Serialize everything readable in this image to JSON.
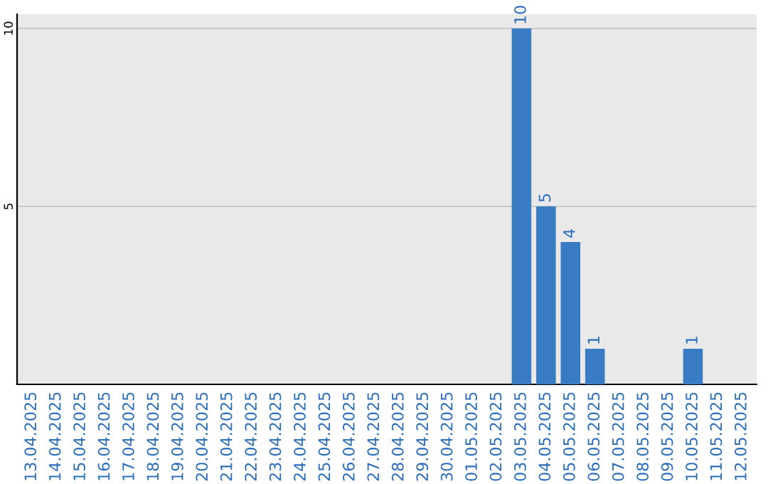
{
  "chart_data": {
    "type": "bar",
    "categories": [
      "13.04.2025",
      "14.04.2025",
      "15.04.2025",
      "16.04.2025",
      "17.04.2025",
      "18.04.2025",
      "19.04.2025",
      "20.04.2025",
      "21.04.2025",
      "22.04.2025",
      "23.04.2025",
      "24.04.2025",
      "25.04.2025",
      "26.04.2025",
      "27.04.2025",
      "28.04.2025",
      "29.04.2025",
      "30.04.2025",
      "01.05.2025",
      "02.05.2025",
      "03.05.2025",
      "04.05.2025",
      "05.05.2025",
      "06.05.2025",
      "07.05.2025",
      "08.05.2025",
      "09.05.2025",
      "10.05.2025",
      "11.05.2025",
      "12.05.2025"
    ],
    "values": [
      0,
      0,
      0,
      0,
      0,
      0,
      0,
      0,
      0,
      0,
      0,
      0,
      0,
      0,
      0,
      0,
      0,
      0,
      0,
      0,
      10,
      5,
      4,
      1,
      0,
      0,
      0,
      1,
      0,
      0
    ],
    "value_labels": [
      null,
      null,
      null,
      null,
      null,
      null,
      null,
      null,
      null,
      null,
      null,
      null,
      null,
      null,
      null,
      null,
      null,
      null,
      null,
      null,
      "10",
      "5",
      "4",
      "1",
      null,
      null,
      null,
      "1",
      null,
      null
    ],
    "color": "#3a7cc3",
    "ylim": [
      0,
      10.4
    ],
    "yticks": [
      5,
      10
    ],
    "grid": "y",
    "legend": false
  }
}
